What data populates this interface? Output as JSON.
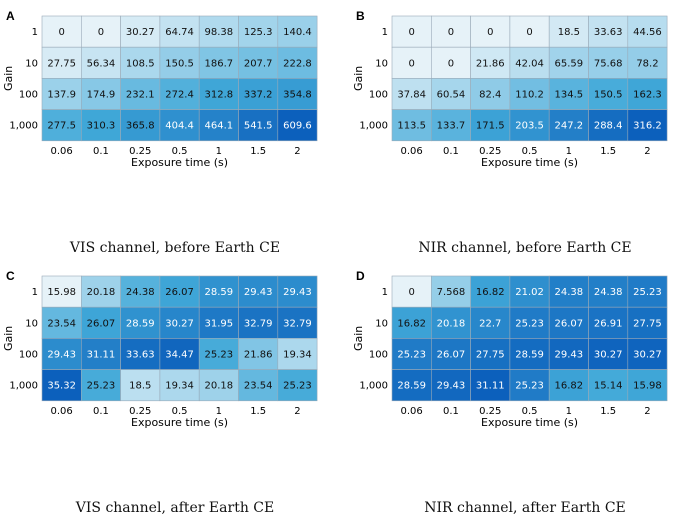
{
  "chart_data": [
    {
      "type": "heatmap",
      "panel_label": "A",
      "caption": "VIS channel, before Earth CE",
      "xlabel": "Exposure time (s)",
      "ylabel": "Gain",
      "x": [
        "0.06",
        "0.1",
        "0.25",
        "0.5",
        "1",
        "1.5",
        "2"
      ],
      "y": [
        "1",
        "10",
        "100",
        "1,000"
      ],
      "values": [
        [
          "0",
          "0",
          "30.27",
          "64.74",
          "98.38",
          "125.3",
          "140.4"
        ],
        [
          "27.75",
          "56.34",
          "108.5",
          "150.5",
          "186.7",
          "207.7",
          "222.8"
        ],
        [
          "137.9",
          "174.9",
          "232.1",
          "272.4",
          "312.8",
          "337.2",
          "354.8"
        ],
        [
          "277.5",
          "310.3",
          "365.8",
          "404.4",
          "464.1",
          "541.5",
          "609.6"
        ]
      ]
    },
    {
      "type": "heatmap",
      "panel_label": "B",
      "caption": "NIR channel, before Earth CE",
      "xlabel": "Exposure time (s)",
      "ylabel": "Gain",
      "x": [
        "0.06",
        "0.1",
        "0.25",
        "0.5",
        "1",
        "1.5",
        "2"
      ],
      "y": [
        "1",
        "10",
        "100",
        "1,000"
      ],
      "values": [
        [
          "0",
          "0",
          "0",
          "0",
          "18.5",
          "33.63",
          "44.56"
        ],
        [
          "0",
          "0",
          "21.86",
          "42.04",
          "65.59",
          "75.68",
          "78.2"
        ],
        [
          "37.84",
          "60.54",
          "82.4",
          "110.2",
          "134.5",
          "150.5",
          "162.3"
        ],
        [
          "113.5",
          "133.7",
          "171.5",
          "203.5",
          "247.2",
          "288.4",
          "316.2"
        ]
      ]
    },
    {
      "type": "heatmap",
      "panel_label": "C",
      "caption": "VIS channel, after Earth CE",
      "xlabel": "Exposure time (s)",
      "ylabel": "Gain",
      "x": [
        "0.06",
        "0.1",
        "0.25",
        "0.5",
        "1",
        "1.5",
        "2"
      ],
      "y": [
        "1",
        "10",
        "100",
        "1,000"
      ],
      "values": [
        [
          "15.98",
          "20.18",
          "24.38",
          "26.07",
          "28.59",
          "29.43",
          "29.43"
        ],
        [
          "23.54",
          "26.07",
          "28.59",
          "30.27",
          "31.95",
          "32.79",
          "32.79"
        ],
        [
          "29.43",
          "31.11",
          "33.63",
          "34.47",
          "25.23",
          "21.86",
          "19.34"
        ],
        [
          "35.32",
          "25.23",
          "18.5",
          "19.34",
          "20.18",
          "23.54",
          "25.23"
        ]
      ]
    },
    {
      "type": "heatmap",
      "panel_label": "D",
      "caption": "NIR channel, after Earth CE",
      "xlabel": "Exposure time (s)",
      "ylabel": "Gain",
      "x": [
        "0.06",
        "0.1",
        "0.25",
        "0.5",
        "1",
        "1.5",
        "2"
      ],
      "y": [
        "1",
        "10",
        "100",
        "1,000"
      ],
      "values": [
        [
          "0",
          "7.568",
          "16.82",
          "21.02",
          "24.38",
          "24.38",
          "25.23"
        ],
        [
          "16.82",
          "20.18",
          "22.7",
          "25.23",
          "26.07",
          "26.91",
          "27.75"
        ],
        [
          "25.23",
          "26.07",
          "27.75",
          "28.59",
          "29.43",
          "30.27",
          "30.27"
        ],
        [
          "28.59",
          "29.43",
          "31.11",
          "25.23",
          "16.82",
          "15.14",
          "15.98"
        ]
      ]
    }
  ]
}
